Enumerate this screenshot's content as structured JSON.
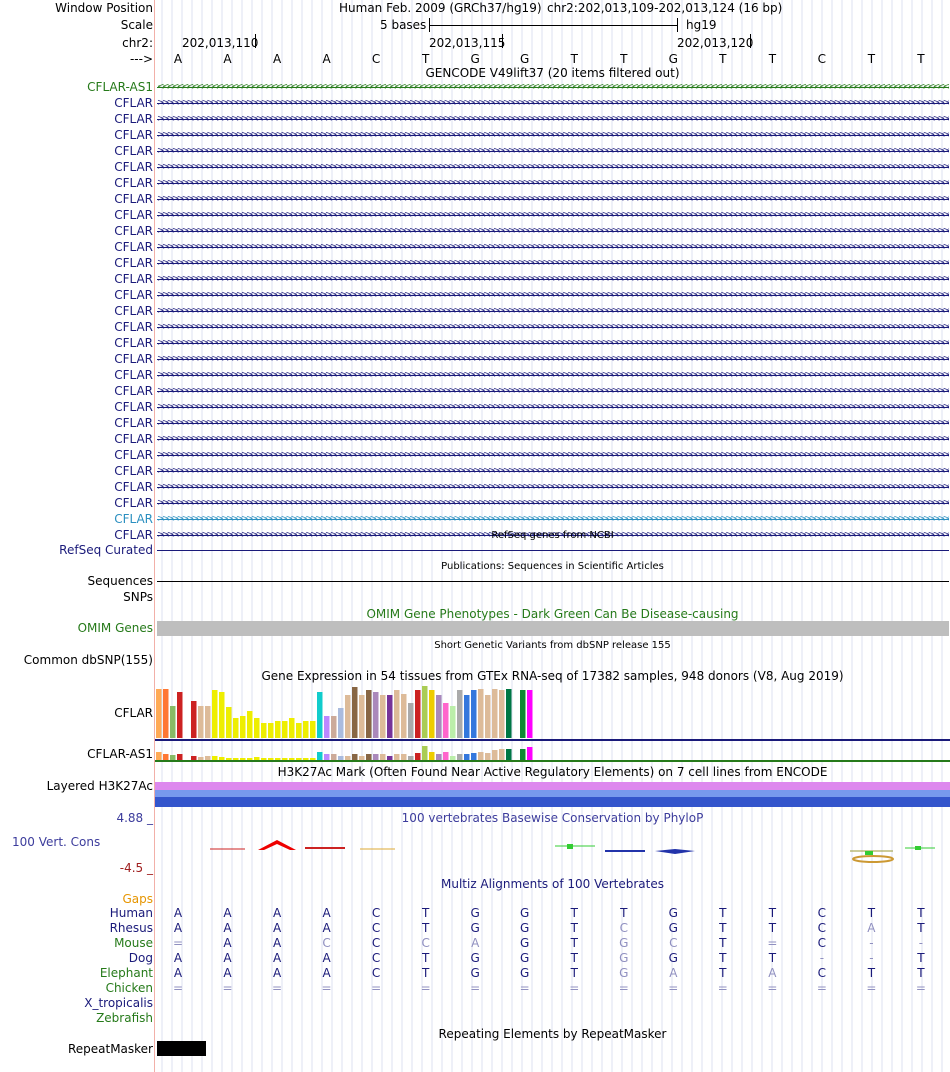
{
  "header": {
    "window_position_label": "Window Position",
    "assembly": "Human Feb. 2009 (GRCh37/hg19)",
    "position": "chr2:202,013,109-202,013,124 (16 bp)",
    "scale_label": "Scale",
    "scale_value": "5 bases",
    "scale_db": "hg19",
    "chrom_label": "chr2:",
    "ticks": [
      "202,013,110",
      "202,013,115",
      "202,013,120"
    ],
    "strand_label": "--->",
    "bases": [
      "A",
      "A",
      "A",
      "A",
      "C",
      "T",
      "G",
      "G",
      "T",
      "T",
      "G",
      "T",
      "T",
      "C",
      "T",
      "T"
    ]
  },
  "gencode": {
    "title": "GENCODE V49lift37 (20 items filtered out)",
    "items": [
      {
        "label": "CFLAR-AS1",
        "color": "#267a1a",
        "dir": "left"
      },
      {
        "label": "CFLAR",
        "color": "#1a1a7a",
        "dir": "right"
      },
      {
        "label": "CFLAR",
        "color": "#1a1a7a",
        "dir": "right"
      },
      {
        "label": "CFLAR",
        "color": "#1a1a7a",
        "dir": "right"
      },
      {
        "label": "CFLAR",
        "color": "#1a1a7a",
        "dir": "right"
      },
      {
        "label": "CFLAR",
        "color": "#1a1a7a",
        "dir": "right"
      },
      {
        "label": "CFLAR",
        "color": "#1a1a7a",
        "dir": "right"
      },
      {
        "label": "CFLAR",
        "color": "#1a1a7a",
        "dir": "right"
      },
      {
        "label": "CFLAR",
        "color": "#1a1a7a",
        "dir": "right"
      },
      {
        "label": "CFLAR",
        "color": "#1a1a7a",
        "dir": "right"
      },
      {
        "label": "CFLAR",
        "color": "#1a1a7a",
        "dir": "right"
      },
      {
        "label": "CFLAR",
        "color": "#1a1a7a",
        "dir": "right"
      },
      {
        "label": "CFLAR",
        "color": "#1a1a7a",
        "dir": "right"
      },
      {
        "label": "CFLAR",
        "color": "#1a1a7a",
        "dir": "right"
      },
      {
        "label": "CFLAR",
        "color": "#1a1a7a",
        "dir": "right"
      },
      {
        "label": "CFLAR",
        "color": "#1a1a7a",
        "dir": "right"
      },
      {
        "label": "CFLAR",
        "color": "#1a1a7a",
        "dir": "right"
      },
      {
        "label": "CFLAR",
        "color": "#1a1a7a",
        "dir": "right"
      },
      {
        "label": "CFLAR",
        "color": "#1a1a7a",
        "dir": "right"
      },
      {
        "label": "CFLAR",
        "color": "#1a1a7a",
        "dir": "right"
      },
      {
        "label": "CFLAR",
        "color": "#1a1a7a",
        "dir": "right"
      },
      {
        "label": "CFLAR",
        "color": "#1a1a7a",
        "dir": "right"
      },
      {
        "label": "CFLAR",
        "color": "#1a1a7a",
        "dir": "right"
      },
      {
        "label": "CFLAR",
        "color": "#1a1a7a",
        "dir": "right"
      },
      {
        "label": "CFLAR",
        "color": "#1a1a7a",
        "dir": "right"
      },
      {
        "label": "CFLAR",
        "color": "#1a1a7a",
        "dir": "right"
      },
      {
        "label": "CFLAR",
        "color": "#1a1a7a",
        "dir": "right"
      },
      {
        "label": "CFLAR",
        "color": "#2b8fc0",
        "dir": "right"
      },
      {
        "label": "CFLAR",
        "color": "#1a1a7a",
        "dir": "right"
      }
    ]
  },
  "refseq": {
    "title": "RefSeq genes from NCBI",
    "label": "RefSeq Curated"
  },
  "publications": {
    "title": "Publications: Sequences in Scientific Articles",
    "label": "Sequences"
  },
  "snps_label": "SNPs",
  "omim": {
    "title": "OMIM Gene Phenotypes - Dark Green Can Be Disease-causing",
    "label": "OMIM Genes"
  },
  "dbsnp": {
    "title": "Short Genetic Variants from dbSNP release 155",
    "label": "Common dbSNP(155)"
  },
  "gtex": {
    "title": "Gene Expression in 54 tissues from GTEx RNA-seq of 17382 samples, 948 donors (V8, Aug 2019)",
    "genes": [
      "CFLAR",
      "CFLAR-AS1"
    ],
    "tissue_colors": [
      "#ffaa55",
      "#ff7733",
      "#88bb66",
      "#cc2222",
      "#ffffff",
      "#cc2222",
      "#ddbb99",
      "#ddbb99",
      "#eeee00",
      "#eeee00",
      "#eeee00",
      "#eeee00",
      "#eeee00",
      "#eeee00",
      "#eeee00",
      "#eeee00",
      "#eeee00",
      "#eeee00",
      "#eeee00",
      "#eeee00",
      "#eeee00",
      "#eeee00",
      "#eeee00",
      "#11cccc",
      "#bb88ff",
      "#ccaa99",
      "#aabbdd",
      "#ddbb99",
      "#886644",
      "#ddbb99",
      "#886644",
      "#aa88bb",
      "#ddbb99",
      "#773399",
      "#ddbb99",
      "#ddbb99",
      "#aaaaaa",
      "#cc2222",
      "#aacc55",
      "#eecc00",
      "#aa88bb",
      "#ff66cc",
      "#bbeeaa",
      "#aaaaaa",
      "#3377dd",
      "#3377dd",
      "#ddbb99",
      "#ddbb99",
      "#ddbb99",
      "#ddbb99",
      "#007744",
      "#ffffff",
      "#118833",
      "#ff00ff"
    ],
    "cflar_values": [
      0.95,
      0.95,
      0.62,
      0.88,
      0.0,
      0.72,
      0.62,
      0.62,
      0.92,
      0.88,
      0.6,
      0.38,
      0.42,
      0.52,
      0.38,
      0.28,
      0.28,
      0.32,
      0.32,
      0.38,
      0.28,
      0.32,
      0.32,
      0.88,
      0.42,
      0.42,
      0.58,
      0.82,
      0.98,
      0.82,
      0.92,
      0.88,
      0.82,
      0.82,
      0.92,
      0.85,
      0.68,
      0.92,
      1.0,
      0.92,
      0.82,
      0.68,
      0.62,
      0.92,
      0.82,
      0.92,
      0.95,
      0.82,
      0.95,
      0.92,
      0.95,
      0.0,
      0.92,
      0.92
    ],
    "as1_values": [
      0.55,
      0.45,
      0.35,
      0.4,
      0.25,
      0.3,
      0.2,
      0.3,
      0.3,
      0.2,
      0.15,
      0.15,
      0.15,
      0.15,
      0.2,
      0.15,
      0.15,
      0.15,
      0.15,
      0.15,
      0.15,
      0.15,
      0.15,
      0.55,
      0.4,
      0.4,
      0.3,
      0.3,
      0.4,
      0.3,
      0.4,
      0.4,
      0.4,
      0.3,
      0.4,
      0.4,
      0.25,
      0.5,
      1.0,
      0.55,
      0.45,
      0.55,
      0.25,
      0.45,
      0.45,
      0.5,
      0.55,
      0.5,
      0.7,
      0.8,
      0.8,
      0.0,
      0.8,
      0.95
    ]
  },
  "h3k27ac": {
    "title": "H3K27Ac Mark (Often Found Near Active Regulatory Elements) on 7 cell lines from ENCODE",
    "label": "Layered H3K27Ac"
  },
  "phylop": {
    "title": "100 vertebrates Basewise Conservation by PhyloP",
    "label": "100 Vert. Cons",
    "max": "4.88 _",
    "min": "-4.5 _"
  },
  "multiz": {
    "title": "Multiz Alignments of 100 Vertebrates",
    "gaps_label": "Gaps",
    "species": [
      {
        "name": "Human",
        "color": "#1a1a7a",
        "seq": [
          "A",
          "A",
          "A",
          "A",
          "C",
          "T",
          "G",
          "G",
          "T",
          "T",
          "G",
          "T",
          "T",
          "C",
          "T",
          "T"
        ],
        "dim": []
      },
      {
        "name": "Rhesus",
        "color": "#1a1a7a",
        "seq": [
          "A",
          "A",
          "A",
          "A",
          "C",
          "T",
          "G",
          "G",
          "T",
          "C",
          "G",
          "T",
          "T",
          "C",
          "A",
          "T"
        ],
        "dim": [
          9,
          14
        ]
      },
      {
        "name": "Mouse",
        "color": "#267a1a",
        "seq": [
          "=",
          "A",
          "A",
          "C",
          "C",
          "C",
          "A",
          "G",
          "T",
          "G",
          "C",
          "T",
          "=",
          "C",
          "-",
          "-"
        ],
        "dim": [
          0,
          3,
          5,
          6,
          9,
          10,
          12,
          14,
          15
        ]
      },
      {
        "name": "Dog",
        "color": "#1a1a7a",
        "seq": [
          "A",
          "A",
          "A",
          "A",
          "C",
          "T",
          "G",
          "G",
          "T",
          "G",
          "G",
          "T",
          "T",
          "-",
          "-",
          "T"
        ],
        "dim": [
          9,
          13,
          14
        ]
      },
      {
        "name": "Elephant",
        "color": "#267a1a",
        "seq": [
          "A",
          "A",
          "A",
          "A",
          "C",
          "T",
          "G",
          "G",
          "T",
          "G",
          "A",
          "T",
          "A",
          "C",
          "T",
          "T"
        ],
        "dim": [
          9,
          10,
          12
        ]
      },
      {
        "name": "Chicken",
        "color": "#267a1a",
        "seq": [
          "=",
          "=",
          "=",
          "=",
          "=",
          "=",
          "=",
          "=",
          "=",
          "=",
          "=",
          "=",
          "=",
          "=",
          "=",
          "="
        ],
        "dim": [
          0,
          1,
          2,
          3,
          4,
          5,
          6,
          7,
          8,
          9,
          10,
          11,
          12,
          13,
          14,
          15
        ]
      },
      {
        "name": "X_tropicalis",
        "color": "#1a1a7a",
        "seq": [],
        "dim": []
      },
      {
        "name": "Zebrafish",
        "color": "#267a1a",
        "seq": [],
        "dim": []
      }
    ]
  },
  "repeatmasker": {
    "title": "Repeating Elements by RepeatMasker",
    "label": "RepeatMasker"
  },
  "colors": {
    "navy": "#1a1a7a",
    "green": "#267a1a",
    "gaps": "#e69500",
    "phylop_blue": "#3c3c9c",
    "phylop_red": "#a02020"
  }
}
